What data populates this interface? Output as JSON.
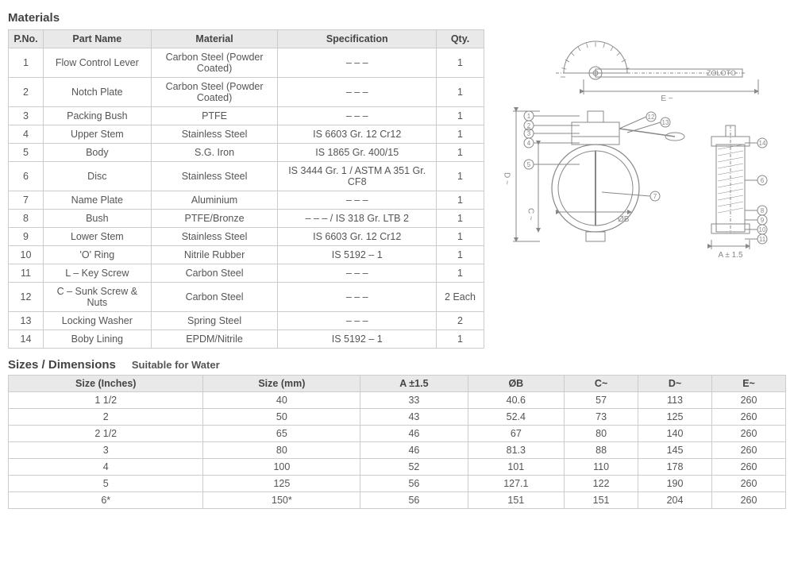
{
  "materials": {
    "heading": "Materials",
    "headers": {
      "pno": "P.No.",
      "part": "Part Name",
      "material": "Material",
      "spec": "Specification",
      "qty": "Qty."
    },
    "rows": [
      {
        "pno": "1",
        "part": "Flow Control Lever",
        "material": "Carbon Steel (Powder Coated)",
        "spec": "– – –",
        "qty": "1"
      },
      {
        "pno": "2",
        "part": "Notch Plate",
        "material": "Carbon Steel (Powder Coated)",
        "spec": "– – –",
        "qty": "1"
      },
      {
        "pno": "3",
        "part": "Packing Bush",
        "material": "PTFE",
        "spec": "– – –",
        "qty": "1"
      },
      {
        "pno": "4",
        "part": "Upper Stem",
        "material": "Stainless Steel",
        "spec": "IS 6603 Gr. 12 Cr12",
        "qty": "1"
      },
      {
        "pno": "5",
        "part": "Body",
        "material": "S.G. Iron",
        "spec": "IS 1865 Gr. 400/15",
        "qty": "1"
      },
      {
        "pno": "6",
        "part": "Disc",
        "material": "Stainless Steel",
        "spec": "IS 3444 Gr. 1 / ASTM A 351 Gr. CF8",
        "qty": "1"
      },
      {
        "pno": "7",
        "part": "Name Plate",
        "material": "Aluminium",
        "spec": "– – –",
        "qty": "1"
      },
      {
        "pno": "8",
        "part": "Bush",
        "material": "PTFE/Bronze",
        "spec": "– – – / IS 318 Gr. LTB 2",
        "qty": "1"
      },
      {
        "pno": "9",
        "part": "Lower Stem",
        "material": "Stainless Steel",
        "spec": "IS 6603 Gr. 12 Cr12",
        "qty": "1"
      },
      {
        "pno": "10",
        "part": "'O' Ring",
        "material": "Nitrile Rubber",
        "spec": "IS 5192 – 1",
        "qty": "1"
      },
      {
        "pno": "11",
        "part": "L – Key Screw",
        "material": "Carbon Steel",
        "spec": "– – –",
        "qty": "1"
      },
      {
        "pno": "12",
        "part": "C – Sunk Screw & Nuts",
        "material": "Carbon Steel",
        "spec": "– – –",
        "qty": "2 Each"
      },
      {
        "pno": "13",
        "part": "Locking Washer",
        "material": "Spring Steel",
        "spec": "– – –",
        "qty": "2"
      },
      {
        "pno": "14",
        "part": "Boby Lining",
        "material": "EPDM/Nitrile",
        "spec": "IS 5192 – 1",
        "qty": "1"
      }
    ]
  },
  "diagram": {
    "labels": {
      "zoloto": "ZOLOTO",
      "E": "E ~",
      "D": "D ~",
      "C": "C ~",
      "OB": "ØB",
      "A": "A ± 1.5"
    },
    "callouts_left": [
      "1",
      "2",
      "3",
      "4",
      "5"
    ],
    "callouts_right": [
      "12",
      "13",
      "7",
      "14",
      "6",
      "8",
      "9",
      "10",
      "11"
    ],
    "stroke": "#888888",
    "text_color": "#888888"
  },
  "sizes": {
    "heading": "Sizes / Dimensions",
    "note": "Suitable for Water",
    "headers": [
      "Size (Inches)",
      "Size (mm)",
      "A ±1.5",
      "ØB",
      "C~",
      "D~",
      "E~"
    ],
    "rows": [
      [
        "1 1/2",
        "40",
        "33",
        "40.6",
        "57",
        "113",
        "260"
      ],
      [
        "2",
        "50",
        "43",
        "52.4",
        "73",
        "125",
        "260"
      ],
      [
        "2 1/2",
        "65",
        "46",
        "67",
        "80",
        "140",
        "260"
      ],
      [
        "3",
        "80",
        "46",
        "81.3",
        "88",
        "145",
        "260"
      ],
      [
        "4",
        "100",
        "52",
        "101",
        "110",
        "178",
        "260"
      ],
      [
        "5",
        "125",
        "56",
        "127.1",
        "122",
        "190",
        "260"
      ],
      [
        "6*",
        "150*",
        "56",
        "151",
        "151",
        "204",
        "260"
      ]
    ]
  }
}
